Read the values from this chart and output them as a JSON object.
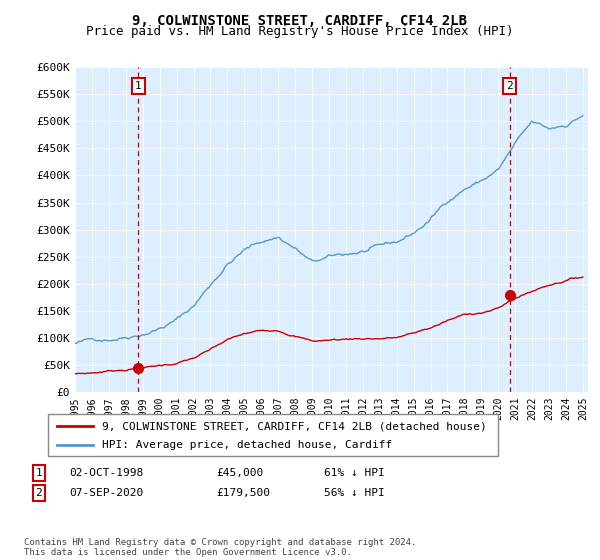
{
  "title": "9, COLWINSTONE STREET, CARDIFF, CF14 2LB",
  "subtitle": "Price paid vs. HM Land Registry's House Price Index (HPI)",
  "ylim": [
    0,
    600000
  ],
  "yticks": [
    0,
    50000,
    100000,
    150000,
    200000,
    250000,
    300000,
    350000,
    400000,
    450000,
    500000,
    550000,
    600000
  ],
  "ytick_labels": [
    "£0",
    "£50K",
    "£100K",
    "£150K",
    "£200K",
    "£250K",
    "£300K",
    "£350K",
    "£400K",
    "£450K",
    "£500K",
    "£550K",
    "£600K"
  ],
  "xlim_left": 1995.0,
  "xlim_right": 2025.3,
  "sale1_year": 1998.75,
  "sale1_price": 45000,
  "sale2_year": 2020.67,
  "sale2_price": 179500,
  "property_color": "#cc0000",
  "hpi_color": "#5599cc",
  "vline_color": "#cc0000",
  "plot_bg_color": "#ddeeff",
  "fig_bg_color": "#ffffff",
  "grid_color": "#ffffff",
  "legend_label_property": "9, COLWINSTONE STREET, CARDIFF, CF14 2LB (detached house)",
  "legend_label_hpi": "HPI: Average price, detached house, Cardiff",
  "sale1_text": "02-OCT-1998",
  "sale1_price_text": "£45,000",
  "sale1_hpi_text": "61% ↓ HPI",
  "sale2_text": "07-SEP-2020",
  "sale2_price_text": "£179,500",
  "sale2_hpi_text": "56% ↓ HPI",
  "footer": "Contains HM Land Registry data © Crown copyright and database right 2024.\nThis data is licensed under the Open Government Licence v3.0.",
  "title_fontsize": 10,
  "subtitle_fontsize": 9
}
